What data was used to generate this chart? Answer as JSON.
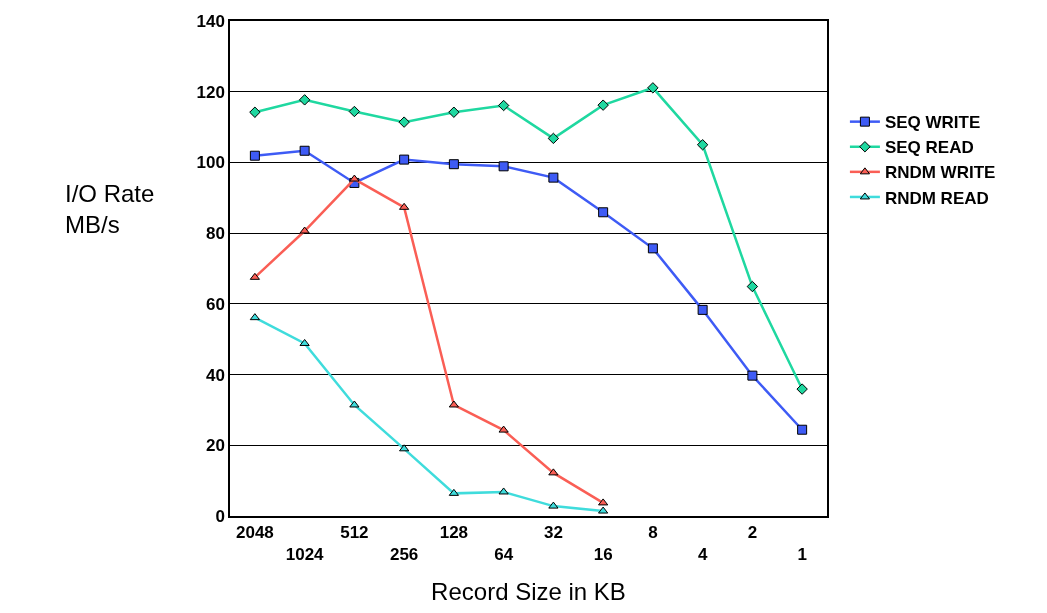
{
  "chart_data": {
    "type": "line",
    "xlabel": "Record Size in KB",
    "ylabel": "I/O Rate MB/s",
    "categories": [
      "2048",
      "1024",
      "512",
      "256",
      "128",
      "64",
      "32",
      "16",
      "8",
      "4",
      "2",
      "1"
    ],
    "ylim": [
      0,
      140
    ],
    "yticks": [
      0,
      20,
      40,
      60,
      80,
      100,
      120,
      140
    ],
    "grid": "y",
    "legend": "right",
    "series": [
      {
        "name": "SEQ WRITE",
        "color": "#3e5bf5",
        "marker": "square",
        "values": [
          101.9,
          103.3,
          94.2,
          100.8,
          99.5,
          98.9,
          95.7,
          85.9,
          75.7,
          58.3,
          39.7,
          24.4
        ]
      },
      {
        "name": "SEQ READ",
        "color": "#1fd8a0",
        "marker": "diamond",
        "values": [
          114.2,
          117.7,
          114.4,
          111.4,
          114.2,
          116.1,
          106.8,
          116.2,
          121.1,
          105.0,
          64.9,
          35.9
        ]
      },
      {
        "name": "RNDM WRITE",
        "color": "#fa5e55",
        "marker": "triangle",
        "values": [
          67.5,
          80.6,
          95.3,
          87.3,
          31.4,
          24.3,
          12.2,
          3.7,
          null,
          null,
          null,
          null
        ]
      },
      {
        "name": "RNDM READ",
        "color": "#3fdcdc",
        "marker": "triangle",
        "values": [
          56.1,
          48.8,
          31.4,
          19.0,
          6.4,
          6.8,
          2.8,
          1.4,
          null,
          null,
          null,
          null
        ]
      }
    ]
  }
}
